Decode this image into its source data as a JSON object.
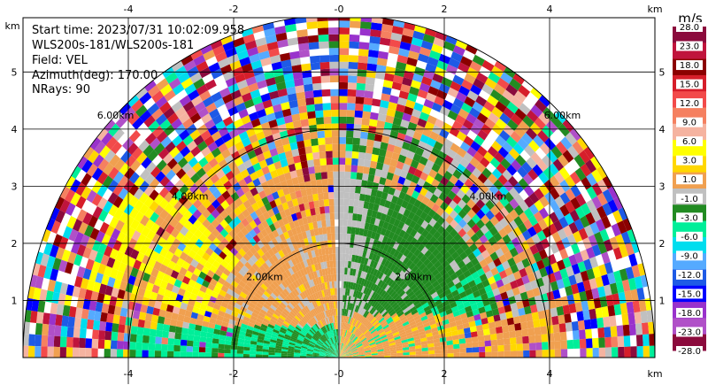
{
  "info": {
    "start_time": "Start time: 2023/07/31 10:02:09.958",
    "instrument": "WLS200s-181/WLS200s-181",
    "field": "Field: VEL",
    "azimuth": "Azimuth(deg): 170.00",
    "nrays": "NRays: 90"
  },
  "colorbar": {
    "unit": "m/s",
    "labels": [
      "28.0",
      "23.0",
      "18.0",
      "15.0",
      "12.0",
      "9.0",
      "6.0",
      "3.0",
      "1.0",
      "-1.0",
      "-3.0",
      "-6.0",
      "-9.0",
      "-12.0",
      "-15.0",
      "-18.0",
      "-23.0",
      "-28.0"
    ],
    "colors": [
      "#8b0a3c",
      "#c0143c",
      "#8b0000",
      "#d61e2a",
      "#f24a4a",
      "#f58060",
      "#f5b3a0",
      "#ffff00",
      "#ffd700",
      "#f0a050",
      "#c0c0c0",
      "#228b22",
      "#00ee99",
      "#00ddee",
      "#55aaff",
      "#1e5ae6",
      "#0000ff",
      "#9932cc",
      "#b050c8",
      "#8b0a3c"
    ]
  },
  "chart_data": {
    "type": "heatmap",
    "plot": "RHI (range-height) scan, radial velocity",
    "x_axis_unit": "km",
    "y_axis_unit": "km",
    "xlim": [
      -6.0,
      6.0
    ],
    "ylim": [
      0.0,
      5.95
    ],
    "x_ticks": [
      "-4",
      "-2",
      "-0",
      "2",
      "4"
    ],
    "x_tick_values": [
      -4,
      -2,
      0,
      2,
      4
    ],
    "y_ticks": [
      "1",
      "2",
      "3",
      "4",
      "5"
    ],
    "y_tick_values": [
      1,
      2,
      3,
      4,
      5
    ],
    "grid": true,
    "range_rings_km": [
      2.0,
      4.0,
      6.0
    ],
    "range_ring_labels": [
      "2.00km",
      "4.00km",
      "6.00km"
    ],
    "max_range_km": 6.0,
    "n_rays": 90,
    "elevation_span_deg": [
      0,
      180
    ],
    "velocity_range_ms": [
      -28.0,
      28.0
    ],
    "regions": [
      {
        "description": "near-ground ring band, far left",
        "x_range": [
          -4.0,
          -2.0
        ],
        "y_range": [
          0.0,
          0.6
        ],
        "class": "-6.0 to -3.0"
      },
      {
        "description": "mid-left sector 1.5-2.5 km",
        "x_range": [
          -2.2,
          0.0
        ],
        "y_range": [
          0.7,
          2.5
        ],
        "class": "1.0 to 3.0"
      },
      {
        "description": "vertical column",
        "x_range": [
          -0.2,
          0.3
        ],
        "y_range": [
          0.0,
          3.3
        ],
        "class": "-1.0 to 1.0"
      },
      {
        "description": "mid-right sector",
        "x_range": [
          0.3,
          2.0
        ],
        "y_range": [
          0.8,
          3.1
        ],
        "class": "-3.0 to -1.0"
      },
      {
        "description": "near-ground right",
        "x_range": [
          0.3,
          2.4
        ],
        "y_range": [
          0.0,
          0.8
        ],
        "class": "1.0 to 3.0"
      },
      {
        "description": "outer ring 4-6 km",
        "x_range": [
          -6.0,
          6.0
        ],
        "y_range": [
          0.0,
          6.0
        ],
        "class": "noise (mixed)"
      }
    ]
  }
}
